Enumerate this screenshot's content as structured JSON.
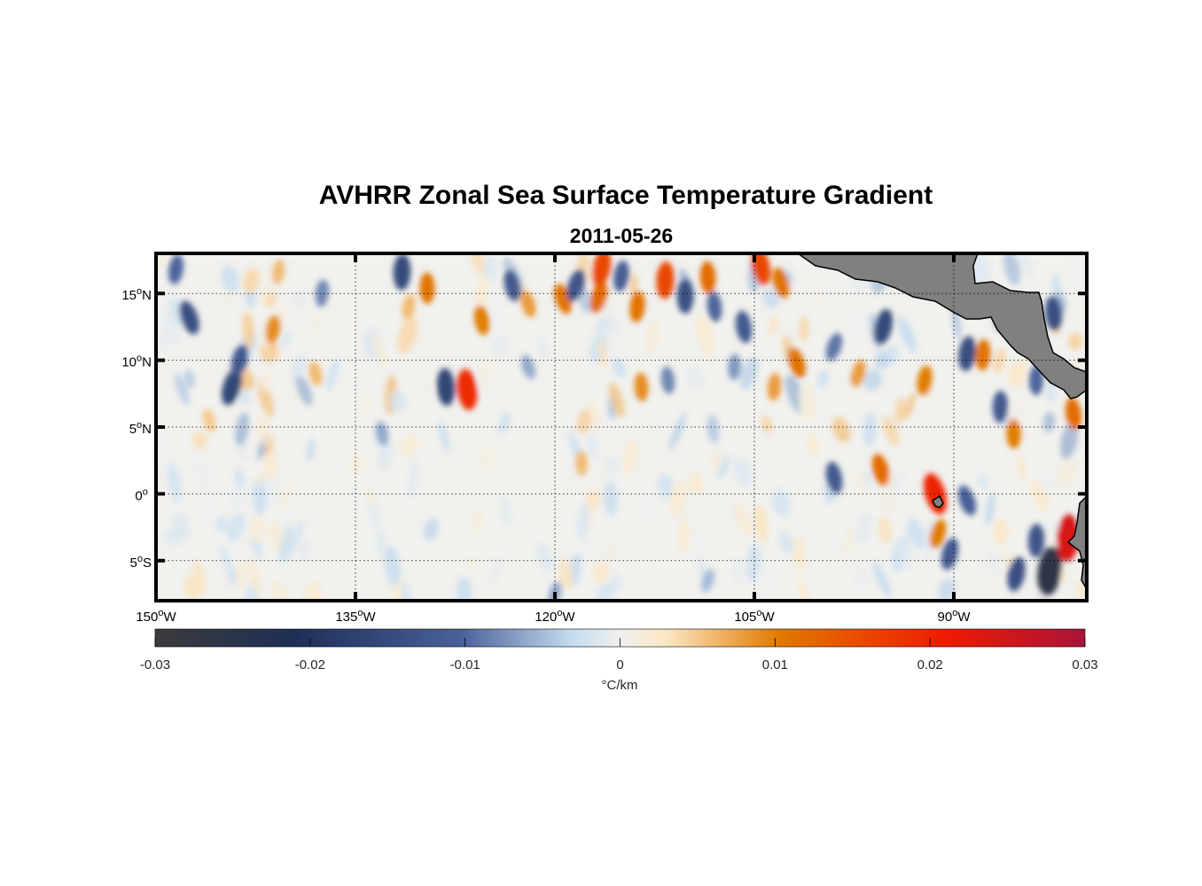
{
  "title": "AVHRR Zonal Sea Surface Temperature Gradient",
  "subtitle": "2011-05-26",
  "map": {
    "lon_range": [
      -150,
      -80
    ],
    "lat_range": [
      -8,
      18
    ],
    "lon_ticks": [
      {
        "value": -150,
        "num": "150",
        "deg": "o",
        "hemi": "W"
      },
      {
        "value": -135,
        "num": "135",
        "deg": "o",
        "hemi": "W"
      },
      {
        "value": -120,
        "num": "120",
        "deg": "o",
        "hemi": "W"
      },
      {
        "value": -105,
        "num": "105",
        "deg": "o",
        "hemi": "W"
      },
      {
        "value": -90,
        "num": "90",
        "deg": "o",
        "hemi": "W"
      }
    ],
    "lat_ticks": [
      {
        "value": 15,
        "num": "15",
        "deg": "o",
        "hemi": "N"
      },
      {
        "value": 10,
        "num": "10",
        "deg": "o",
        "hemi": "N"
      },
      {
        "value": 5,
        "num": "5",
        "deg": "o",
        "hemi": "N"
      },
      {
        "value": 0,
        "num": "0",
        "deg": "o",
        "hemi": ""
      },
      {
        "value": -5,
        "num": "5",
        "deg": "o",
        "hemi": "S"
      }
    ],
    "land_color": "#808080",
    "blobs": [
      {
        "lon": -147.5,
        "lat": 13.2,
        "v": -0.014
      },
      {
        "lon": -144.3,
        "lat": 8.0,
        "v": -0.016
      },
      {
        "lon": -143.7,
        "lat": 10.0,
        "v": -0.012
      },
      {
        "lon": -141.2,
        "lat": 12.3,
        "v": 0.009
      },
      {
        "lon": -140.8,
        "lat": 16.6,
        "v": 0.006
      },
      {
        "lon": -137.5,
        "lat": 15.0,
        "v": -0.008
      },
      {
        "lon": -131.5,
        "lat": 16.6,
        "v": -0.015
      },
      {
        "lon": -129.6,
        "lat": 15.4,
        "v": 0.011
      },
      {
        "lon": -128.2,
        "lat": 8.0,
        "v": -0.016
      },
      {
        "lon": -126.6,
        "lat": 7.8,
        "v": 0.019
      },
      {
        "lon": -125.5,
        "lat": 13.0,
        "v": 0.01
      },
      {
        "lon": -123.2,
        "lat": 15.6,
        "v": -0.012
      },
      {
        "lon": -122.0,
        "lat": 14.2,
        "v": 0.008
      },
      {
        "lon": -119.4,
        "lat": 14.6,
        "v": 0.011
      },
      {
        "lon": -118.4,
        "lat": 15.6,
        "v": -0.013
      },
      {
        "lon": -116.7,
        "lat": 14.7,
        "v": 0.012
      },
      {
        "lon": -116.5,
        "lat": 16.9,
        "v": 0.016
      },
      {
        "lon": -115.0,
        "lat": 16.3,
        "v": -0.011
      },
      {
        "lon": -113.8,
        "lat": 14.0,
        "v": 0.011
      },
      {
        "lon": -111.7,
        "lat": 16.0,
        "v": 0.016
      },
      {
        "lon": -110.2,
        "lat": 14.8,
        "v": -0.014
      },
      {
        "lon": -108.5,
        "lat": 16.2,
        "v": 0.012
      },
      {
        "lon": -108.0,
        "lat": 14.0,
        "v": -0.01
      },
      {
        "lon": -105.8,
        "lat": 12.5,
        "v": -0.012
      },
      {
        "lon": -104.5,
        "lat": 17.0,
        "v": 0.016
      },
      {
        "lon": -103.0,
        "lat": 15.8,
        "v": 0.011
      },
      {
        "lon": -101.8,
        "lat": 9.8,
        "v": 0.011
      },
      {
        "lon": -99.0,
        "lat": 11.0,
        "v": -0.009
      },
      {
        "lon": -97.2,
        "lat": 9.0,
        "v": 0.008
      },
      {
        "lon": -95.3,
        "lat": 12.5,
        "v": -0.015
      },
      {
        "lon": -92.2,
        "lat": 8.5,
        "v": 0.01
      },
      {
        "lon": -89.0,
        "lat": 10.5,
        "v": -0.014
      },
      {
        "lon": -87.8,
        "lat": 10.4,
        "v": 0.011
      },
      {
        "lon": -86.5,
        "lat": 6.5,
        "v": -0.012
      },
      {
        "lon": -85.5,
        "lat": 4.5,
        "v": 0.01
      },
      {
        "lon": -82.5,
        "lat": 13.5,
        "v": -0.014
      },
      {
        "lon": -81.0,
        "lat": 6.0,
        "v": 0.012
      },
      {
        "lon": -99.0,
        "lat": 1.2,
        "v": -0.012
      },
      {
        "lon": -95.5,
        "lat": 1.8,
        "v": 0.012
      },
      {
        "lon": -91.4,
        "lat": 0.0,
        "v": 0.02
      },
      {
        "lon": -89.0,
        "lat": -0.5,
        "v": -0.011
      },
      {
        "lon": -91.2,
        "lat": -3.0,
        "v": 0.01
      },
      {
        "lon": -90.3,
        "lat": -4.5,
        "v": -0.012
      },
      {
        "lon": -85.3,
        "lat": -6.0,
        "v": -0.014
      },
      {
        "lon": -82.8,
        "lat": -5.8,
        "v": -0.026
      },
      {
        "lon": -81.4,
        "lat": -3.3,
        "v": 0.024
      },
      {
        "lon": -83.8,
        "lat": -3.5,
        "v": -0.013
      },
      {
        "lon": -118.0,
        "lat": 2.3,
        "v": 0.006
      },
      {
        "lon": -113.5,
        "lat": 8.0,
        "v": 0.009
      },
      {
        "lon": -111.5,
        "lat": 8.5,
        "v": -0.008
      },
      {
        "lon": -133.0,
        "lat": 4.5,
        "v": -0.006
      },
      {
        "lon": -138.0,
        "lat": 9.0,
        "v": 0.006
      },
      {
        "lon": -146.0,
        "lat": 5.5,
        "v": 0.005
      },
      {
        "lon": -122.0,
        "lat": 9.5,
        "v": -0.006
      },
      {
        "lon": -108.5,
        "lat": -6.5,
        "v": -0.005
      },
      {
        "lon": -120.0,
        "lat": -7.5,
        "v": -0.006
      },
      {
        "lon": -131.0,
        "lat": 14.0,
        "v": 0.006
      },
      {
        "lon": -148.5,
        "lat": 16.8,
        "v": -0.01
      },
      {
        "lon": -103.5,
        "lat": 8.0,
        "v": 0.008
      },
      {
        "lon": -106.5,
        "lat": 9.5,
        "v": -0.007
      },
      {
        "lon": -83.8,
        "lat": 8.5,
        "v": -0.01
      }
    ]
  },
  "colorbar": {
    "vmin": -0.03,
    "vmax": 0.03,
    "ticks": [
      {
        "value": -0.03,
        "label": "-0.03"
      },
      {
        "value": -0.02,
        "label": "-0.02"
      },
      {
        "value": -0.01,
        "label": "-0.01"
      },
      {
        "value": 0,
        "label": "0"
      },
      {
        "value": 0.01,
        "label": "0.01"
      },
      {
        "value": 0.02,
        "label": "0.02"
      },
      {
        "value": 0.03,
        "label": "0.03"
      }
    ],
    "unit_label": "°C/km",
    "colors": [
      "#3b3b3b",
      "#1e2f57",
      "#4a629a",
      "#c6ddf0",
      "#eef0f0",
      "#fde7c4",
      "#e07a00",
      "#f01a00",
      "#a8143a"
    ]
  }
}
